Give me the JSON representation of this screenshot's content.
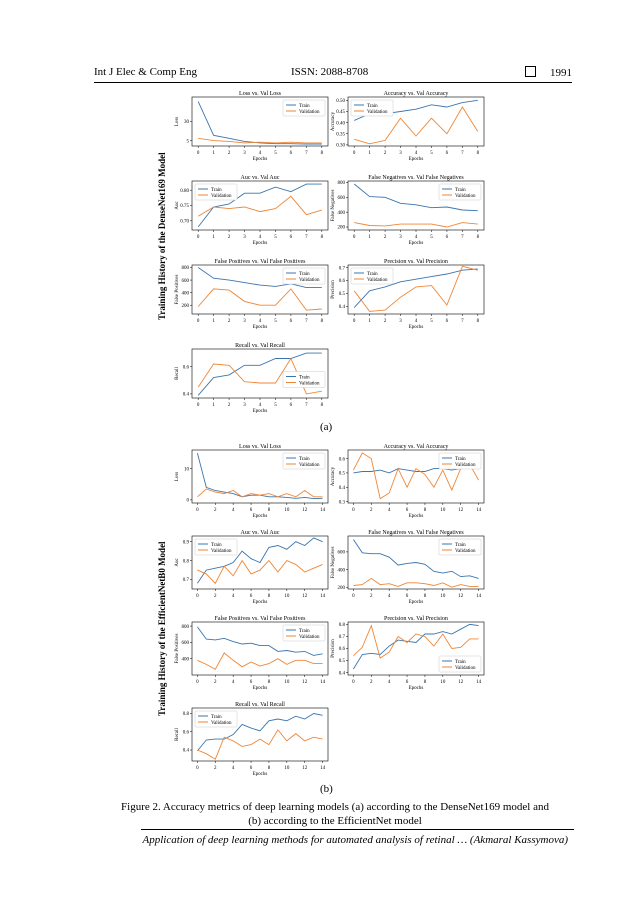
{
  "header": {
    "journal": "Int J Elec & Comp Eng",
    "issn": "ISSN: 2088-8708",
    "page": "1991"
  },
  "figure": {
    "side_label_a": "Training History of the DenseNet169 Model",
    "side_label_b": "Training History of the EfficientNetB0 Model",
    "sublabel_a": "(a)",
    "sublabel_b": "(b)",
    "caption_line1": "Figure 2. Accuracy metrics of deep learning models (a) according to the DenseNet169 model and",
    "caption_line2": "(b) according to the EfficientNet model"
  },
  "footer": {
    "text": "Application of deep learning methods for automated analysis of retinal … (Akmaral Kassymova)"
  },
  "colors": {
    "train": "#3b75af",
    "validation": "#ef8636"
  },
  "chart_data": [
    {
      "type": "line",
      "group": "a",
      "title": "Loss vs. Val Loss",
      "xlabel": "Epochs",
      "ylabel": "Loss",
      "x": [
        0,
        1,
        2,
        3,
        4,
        5,
        6,
        7,
        8
      ],
      "xticks": [
        0,
        1,
        2,
        3,
        4,
        5,
        6,
        7,
        8
      ],
      "xlim": [
        -0.4,
        8.4
      ],
      "ylim": [
        -2,
        62
      ],
      "yticks": [
        5,
        30
      ],
      "legend": "top-right",
      "series": [
        {
          "name": "Train",
          "values": [
            56,
            12,
            8,
            4,
            2,
            1,
            1,
            0.5,
            0.5
          ]
        },
        {
          "name": "Validation",
          "values": [
            8,
            5,
            4,
            2,
            3,
            2,
            3,
            2,
            2
          ]
        }
      ]
    },
    {
      "type": "line",
      "group": "a",
      "title": "Accuracy vs. Val Accuracy",
      "xlabel": "Epochs",
      "ylabel": "Accuracy",
      "x": [
        0,
        1,
        2,
        3,
        4,
        5,
        6,
        7,
        8
      ],
      "xticks": [
        0,
        1,
        2,
        3,
        4,
        5,
        6,
        7,
        8
      ],
      "xlim": [
        -0.4,
        8.4
      ],
      "ylim": [
        0.295,
        0.515
      ],
      "yticks": [
        0.3,
        0.35,
        0.4,
        0.45,
        0.5
      ],
      "ytick_labels": [
        "0.30",
        "0.35",
        "0.40",
        "0.45",
        "0.50"
      ],
      "legend": "top-left",
      "series": [
        {
          "name": "Train",
          "values": [
            0.41,
            0.44,
            0.44,
            0.45,
            0.46,
            0.48,
            0.47,
            0.49,
            0.5
          ]
        },
        {
          "name": "Validation",
          "values": [
            0.325,
            0.305,
            0.32,
            0.42,
            0.34,
            0.42,
            0.35,
            0.47,
            0.36
          ]
        }
      ]
    },
    {
      "type": "line",
      "group": "a",
      "title": "Auc vs. Val Auc",
      "xlabel": "Epochs",
      "ylabel": "Auc",
      "x": [
        0,
        1,
        2,
        3,
        4,
        5,
        6,
        7,
        8
      ],
      "xticks": [
        0,
        1,
        2,
        3,
        4,
        5,
        6,
        7,
        8
      ],
      "xlim": [
        -0.4,
        8.4
      ],
      "ylim": [
        0.67,
        0.83
      ],
      "yticks": [
        0.7,
        0.75,
        0.8
      ],
      "ytick_labels": [
        "0.70",
        "0.75",
        "0.80"
      ],
      "legend": "top-left",
      "series": [
        {
          "name": "Train",
          "values": [
            0.68,
            0.745,
            0.755,
            0.79,
            0.79,
            0.81,
            0.795,
            0.82,
            0.82
          ]
        },
        {
          "name": "Validation",
          "values": [
            0.715,
            0.745,
            0.74,
            0.745,
            0.73,
            0.74,
            0.78,
            0.72,
            0.735
          ]
        }
      ]
    },
    {
      "type": "line",
      "group": "a",
      "title": "False Negatives vs. Val False Negatives",
      "xlabel": "Epochs",
      "ylabel": "False Negatives",
      "x": [
        0,
        1,
        2,
        3,
        4,
        5,
        6,
        7,
        8
      ],
      "xticks": [
        0,
        1,
        2,
        3,
        4,
        5,
        6,
        7,
        8
      ],
      "xlim": [
        -0.4,
        8.4
      ],
      "ylim": [
        160,
        820
      ],
      "yticks": [
        200,
        400,
        600,
        800
      ],
      "legend": "top-right",
      "series": [
        {
          "name": "Train",
          "values": [
            780,
            610,
            600,
            520,
            500,
            460,
            470,
            430,
            420
          ]
        },
        {
          "name": "Validation",
          "values": [
            260,
            220,
            215,
            240,
            240,
            240,
            200,
            260,
            240
          ]
        }
      ]
    },
    {
      "type": "line",
      "group": "a",
      "title": "False Positives vs. Val False Positives",
      "xlabel": "Epochs",
      "ylabel": "False Positives",
      "x": [
        0,
        1,
        2,
        3,
        4,
        5,
        6,
        7,
        8
      ],
      "xticks": [
        0,
        1,
        2,
        3,
        4,
        5,
        6,
        7,
        8
      ],
      "xlim": [
        -0.4,
        8.4
      ],
      "ylim": [
        60,
        840
      ],
      "yticks": [
        200,
        400,
        600,
        800
      ],
      "legend": "top-right",
      "series": [
        {
          "name": "Train",
          "values": [
            800,
            630,
            600,
            560,
            520,
            500,
            540,
            480,
            480
          ]
        },
        {
          "name": "Validation",
          "values": [
            180,
            460,
            440,
            260,
            200,
            200,
            460,
            120,
            140
          ]
        }
      ]
    },
    {
      "type": "line",
      "group": "a",
      "title": "Precision vs. Val Precision",
      "xlabel": "Epochs",
      "ylabel": "Precision",
      "x": [
        0,
        1,
        2,
        3,
        4,
        5,
        6,
        7,
        8
      ],
      "xticks": [
        0,
        1,
        2,
        3,
        4,
        5,
        6,
        7,
        8
      ],
      "xlim": [
        -0.4,
        8.4
      ],
      "ylim": [
        0.34,
        0.72
      ],
      "yticks": [
        0.4,
        0.5,
        0.6,
        0.7
      ],
      "legend": "top-left",
      "series": [
        {
          "name": "Train",
          "values": [
            0.39,
            0.52,
            0.55,
            0.59,
            0.61,
            0.63,
            0.65,
            0.68,
            0.69
          ]
        },
        {
          "name": "Validation",
          "values": [
            0.52,
            0.36,
            0.37,
            0.47,
            0.55,
            0.56,
            0.41,
            0.71,
            0.68
          ]
        }
      ]
    },
    {
      "type": "line",
      "group": "a",
      "title": "Recall vs. Val Recall",
      "xlabel": "Epochs",
      "ylabel": "Recall",
      "x": [
        0,
        1,
        2,
        3,
        4,
        5,
        6,
        7,
        8
      ],
      "xticks": [
        0,
        1,
        2,
        3,
        4,
        5,
        6,
        7,
        8
      ],
      "xlim": [
        -0.4,
        8.4
      ],
      "ylim": [
        0.37,
        0.73
      ],
      "yticks": [
        0.4,
        0.6
      ],
      "legend": "mid-right",
      "series": [
        {
          "name": "Train",
          "values": [
            0.39,
            0.52,
            0.54,
            0.61,
            0.61,
            0.66,
            0.66,
            0.7,
            0.7
          ]
        },
        {
          "name": "Validation",
          "values": [
            0.45,
            0.62,
            0.61,
            0.49,
            0.48,
            0.48,
            0.66,
            0.4,
            0.42
          ]
        }
      ]
    },
    {
      "type": "line",
      "group": "b",
      "title": "Loss vs. Val Loss",
      "xlabel": "Epochs",
      "ylabel": "Loss",
      "x": [
        0,
        1,
        2,
        3,
        4,
        5,
        6,
        7,
        8,
        9,
        10,
        11,
        12,
        13,
        14
      ],
      "xticks": [
        0,
        2,
        4,
        6,
        8,
        10,
        12,
        14
      ],
      "xlim": [
        -0.6,
        14.6
      ],
      "ylim": [
        -1,
        16
      ],
      "yticks": [
        0,
        10
      ],
      "legend": "top-right",
      "series": [
        {
          "name": "Train",
          "values": [
            15,
            4,
            3,
            2.5,
            2,
            1,
            1.5,
            1.5,
            1,
            1,
            0.8,
            0.5,
            0.8,
            0.4,
            0.5
          ]
        },
        {
          "name": "Validation",
          "values": [
            1,
            3.5,
            2.5,
            2,
            3,
            1,
            2,
            1.5,
            2,
            1,
            2,
            1,
            3,
            1,
            1
          ]
        }
      ]
    },
    {
      "type": "line",
      "group": "b",
      "title": "Accuracy vs. Val Accuracy",
      "xlabel": "Epochs",
      "ylabel": "Accuracy",
      "x": [
        0,
        1,
        2,
        3,
        4,
        5,
        6,
        7,
        8,
        9,
        10,
        11,
        12,
        13,
        14
      ],
      "xticks": [
        0,
        2,
        4,
        6,
        8,
        10,
        12,
        14
      ],
      "xlim": [
        -0.6,
        14.6
      ],
      "ylim": [
        0.29,
        0.66
      ],
      "yticks": [
        0.3,
        0.4,
        0.5,
        0.6
      ],
      "legend": "top-right",
      "series": [
        {
          "name": "Train",
          "values": [
            0.5,
            0.51,
            0.51,
            0.52,
            0.5,
            0.53,
            0.52,
            0.51,
            0.51,
            0.53,
            0.53,
            0.52,
            0.53,
            0.56,
            0.53
          ]
        },
        {
          "name": "Validation",
          "values": [
            0.52,
            0.64,
            0.6,
            0.32,
            0.36,
            0.53,
            0.4,
            0.53,
            0.49,
            0.4,
            0.52,
            0.38,
            0.53,
            0.56,
            0.45
          ]
        }
      ]
    },
    {
      "type": "line",
      "group": "b",
      "title": "Auc vs. Val Auc",
      "xlabel": "Epochs",
      "ylabel": "Auc",
      "x": [
        0,
        1,
        2,
        3,
        4,
        5,
        6,
        7,
        8,
        9,
        10,
        11,
        12,
        13,
        14
      ],
      "xticks": [
        0,
        2,
        4,
        6,
        8,
        10,
        12,
        14
      ],
      "xlim": [
        -0.6,
        14.6
      ],
      "ylim": [
        0.65,
        0.93
      ],
      "yticks": [
        0.7,
        0.8,
        0.9
      ],
      "legend": "top-left",
      "series": [
        {
          "name": "Train",
          "values": [
            0.68,
            0.75,
            0.76,
            0.77,
            0.79,
            0.85,
            0.81,
            0.79,
            0.87,
            0.88,
            0.86,
            0.9,
            0.88,
            0.92,
            0.9
          ]
        },
        {
          "name": "Validation",
          "values": [
            0.75,
            0.73,
            0.68,
            0.77,
            0.72,
            0.8,
            0.73,
            0.75,
            0.8,
            0.74,
            0.8,
            0.78,
            0.74,
            0.76,
            0.78
          ]
        }
      ]
    },
    {
      "type": "line",
      "group": "b",
      "title": "False Negatives vs. Val False Negatives",
      "xlabel": "Epochs",
      "ylabel": "False Negatives",
      "x": [
        0,
        1,
        2,
        3,
        4,
        5,
        6,
        7,
        8,
        9,
        10,
        11,
        12,
        13,
        14
      ],
      "xticks": [
        0,
        2,
        4,
        6,
        8,
        10,
        12,
        14
      ],
      "xlim": [
        -0.6,
        14.6
      ],
      "ylim": [
        180,
        780
      ],
      "yticks": [
        200,
        400,
        600
      ],
      "legend": "top-right",
      "series": [
        {
          "name": "Train",
          "values": [
            740,
            590,
            580,
            580,
            540,
            450,
            470,
            480,
            460,
            380,
            360,
            380,
            320,
            330,
            300
          ]
        },
        {
          "name": "Validation",
          "values": [
            220,
            230,
            300,
            230,
            240,
            210,
            250,
            250,
            240,
            220,
            250,
            200,
            230,
            210,
            210
          ]
        }
      ]
    },
    {
      "type": "line",
      "group": "b",
      "title": "False Positives vs. Val False Positives",
      "xlabel": "Epochs",
      "ylabel": "False Positives",
      "x": [
        0,
        1,
        2,
        3,
        4,
        5,
        6,
        7,
        8,
        9,
        10,
        11,
        12,
        13,
        14
      ],
      "xticks": [
        0,
        2,
        4,
        6,
        8,
        10,
        12,
        14
      ],
      "xlim": [
        -0.6,
        14.6
      ],
      "ylim": [
        200,
        850
      ],
      "yticks": [
        400,
        600,
        800
      ],
      "legend": "top-right",
      "series": [
        {
          "name": "Train",
          "values": [
            790,
            640,
            630,
            650,
            610,
            580,
            590,
            560,
            560,
            490,
            500,
            480,
            490,
            440,
            460
          ]
        },
        {
          "name": "Validation",
          "values": [
            380,
            330,
            270,
            470,
            380,
            300,
            360,
            310,
            340,
            400,
            330,
            380,
            380,
            340,
            340
          ]
        }
      ]
    },
    {
      "type": "line",
      "group": "b",
      "title": "Precision vs. Val Precision",
      "xlabel": "Epochs",
      "ylabel": "Precision",
      "x": [
        0,
        1,
        2,
        3,
        4,
        5,
        6,
        7,
        8,
        9,
        10,
        11,
        12,
        13,
        14
      ],
      "xticks": [
        0,
        2,
        4,
        6,
        8,
        10,
        12,
        14
      ],
      "xlim": [
        -0.6,
        14.6
      ],
      "ylim": [
        0.38,
        0.82
      ],
      "yticks": [
        0.4,
        0.5,
        0.6,
        0.7,
        0.8
      ],
      "legend": "bottom-right",
      "series": [
        {
          "name": "Train",
          "values": [
            0.43,
            0.55,
            0.56,
            0.55,
            0.62,
            0.67,
            0.66,
            0.65,
            0.72,
            0.72,
            0.74,
            0.72,
            0.76,
            0.8,
            0.79
          ]
        },
        {
          "name": "Validation",
          "values": [
            0.54,
            0.61,
            0.79,
            0.52,
            0.57,
            0.7,
            0.65,
            0.72,
            0.7,
            0.62,
            0.72,
            0.6,
            0.61,
            0.68,
            0.68
          ]
        }
      ]
    },
    {
      "type": "line",
      "group": "b",
      "title": "Recall vs. Val Recall",
      "xlabel": "Epochs",
      "ylabel": "Recall",
      "x": [
        0,
        1,
        2,
        3,
        4,
        5,
        6,
        7,
        8,
        9,
        10,
        11,
        12,
        13,
        14
      ],
      "xticks": [
        0,
        2,
        4,
        6,
        8,
        10,
        12,
        14
      ],
      "xlim": [
        -0.6,
        14.6
      ],
      "ylim": [
        0.28,
        0.86
      ],
      "yticks": [
        0.4,
        0.6,
        0.8
      ],
      "legend": "top-left",
      "series": [
        {
          "name": "Train",
          "values": [
            0.39,
            0.51,
            0.52,
            0.52,
            0.57,
            0.68,
            0.64,
            0.61,
            0.72,
            0.74,
            0.72,
            0.77,
            0.74,
            0.8,
            0.78
          ]
        },
        {
          "name": "Validation",
          "values": [
            0.4,
            0.36,
            0.3,
            0.54,
            0.5,
            0.44,
            0.46,
            0.52,
            0.46,
            0.62,
            0.5,
            0.58,
            0.5,
            0.54,
            0.52
          ]
        }
      ]
    }
  ]
}
